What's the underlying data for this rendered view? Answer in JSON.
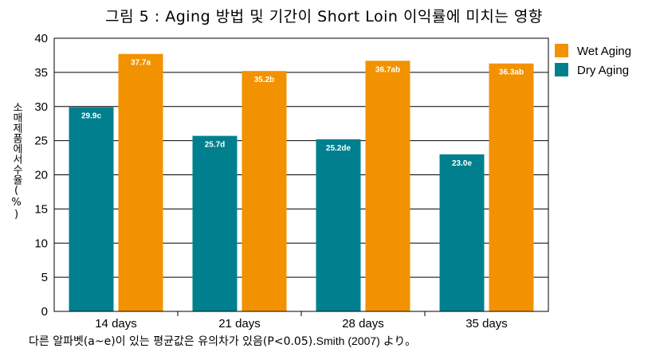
{
  "chart_data": {
    "type": "bar",
    "title": "그림 5 : Aging 방법 및 기간이 Short Loin 이익률에 미치는 영향",
    "ylabel": "소매제품에서수율(%)",
    "xlabel": "",
    "ylim": [
      0,
      40
    ],
    "yticks": [
      0,
      5,
      10,
      15,
      20,
      25,
      30,
      35,
      40
    ],
    "grid": true,
    "legend_position": "right",
    "categories": [
      "14 days",
      "21 days",
      "28 days",
      "35 days"
    ],
    "series": [
      {
        "name": "Dry Aging",
        "color": "#00808e",
        "values": [
          29.9,
          25.7,
          25.2,
          23.0
        ],
        "labels": [
          "29.9c",
          "25.7d",
          "25.2de",
          "23.0e"
        ]
      },
      {
        "name": "Wet Aging",
        "color": "#f39200",
        "values": [
          37.7,
          35.2,
          36.7,
          36.3
        ],
        "labels": [
          "37.7a",
          "35.2b",
          "36.7ab",
          "36.3ab"
        ]
      }
    ],
    "legend_order": [
      "Wet Aging",
      "Dry Aging"
    ]
  },
  "footnote": {
    "text": "다른 알파벳(a~e)이 있는 평균값은 유의차가 있음(P<0.05).",
    "source": "Smith (2007) より。"
  }
}
